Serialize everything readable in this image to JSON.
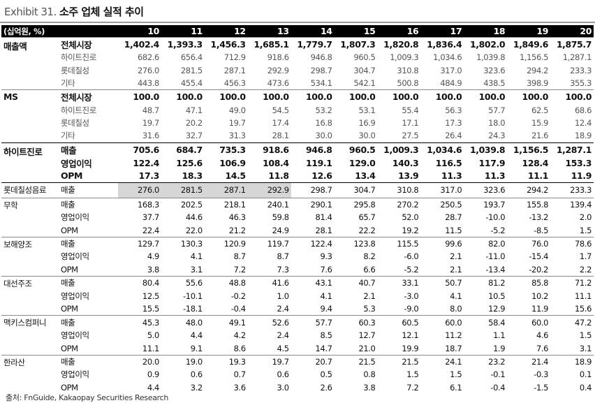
{
  "header": {
    "label": "Exhibit 31.",
    "title": "소주 업체 실적 추이"
  },
  "table": {
    "unit": "(십억원, %)",
    "columns": [
      "10",
      "11",
      "12",
      "13",
      "14",
      "15",
      "16",
      "17",
      "18",
      "19",
      "20"
    ],
    "groups": [
      {
        "label": "매출액",
        "rows": [
          {
            "label": "전체시장",
            "values": [
              "1,402.4",
              "1,393.3",
              "1,456.3",
              "1,685.1",
              "1,779.7",
              "1,807.3",
              "1,820.8",
              "1,836.4",
              "1,802.0",
              "1,849.6",
              "1,875.7"
            ]
          },
          {
            "label": "하이트진로",
            "values": [
              "682.6",
              "656.4",
              "712.9",
              "918.6",
              "946.8",
              "960.5",
              "1,009.3",
              "1,034.6",
              "1,039.8",
              "1,156.5",
              "1,287.1"
            ]
          },
          {
            "label": "롯데칠성",
            "values": [
              "276.0",
              "281.5",
              "287.1",
              "292.9",
              "298.7",
              "304.7",
              "310.8",
              "317.0",
              "323.6",
              "294.2",
              "233.3"
            ]
          },
          {
            "label": "기타",
            "values": [
              "443.8",
              "455.4",
              "456.3",
              "473.6",
              "534.1",
              "542.1",
              "500.8",
              "484.9",
              "438.5",
              "398.9",
              "355.3"
            ]
          }
        ]
      },
      {
        "label": "MS",
        "rows": [
          {
            "label": "전체시장",
            "values": [
              "100.0",
              "100.0",
              "100.0",
              "100.0",
              "100.0",
              "100.0",
              "100.0",
              "100.0",
              "100.0",
              "100.0",
              "100.0"
            ]
          },
          {
            "label": "하이트진로",
            "values": [
              "48.7",
              "47.1",
              "49.0",
              "54.5",
              "53.2",
              "53.1",
              "55.4",
              "56.3",
              "57.7",
              "62.5",
              "68.6"
            ]
          },
          {
            "label": "롯데칠성",
            "values": [
              "19.7",
              "20.2",
              "19.7",
              "17.4",
              "16.8",
              "16.9",
              "17.1",
              "17.3",
              "18.0",
              "15.9",
              "12.4"
            ]
          },
          {
            "label": "기타",
            "values": [
              "31.6",
              "32.7",
              "31.3",
              "28.1",
              "30.0",
              "30.0",
              "27.5",
              "26.4",
              "24.3",
              "21.6",
              "18.9"
            ]
          }
        ]
      },
      {
        "label": "하이트진로",
        "rows": [
          {
            "label": "매출",
            "values": [
              "705.6",
              "684.7",
              "735.3",
              "918.6",
              "946.8",
              "960.5",
              "1,009.3",
              "1,034.6",
              "1,039.8",
              "1,156.5",
              "1,287.1"
            ]
          },
          {
            "label": "영업이익",
            "values": [
              "122.4",
              "125.6",
              "106.9",
              "108.4",
              "119.1",
              "129.0",
              "140.3",
              "116.5",
              "117.9",
              "128.4",
              "153.3"
            ]
          },
          {
            "label": "OPM",
            "values": [
              "17.3",
              "18.3",
              "14.5",
              "11.8",
              "12.6",
              "13.4",
              "13.9",
              "11.3",
              "11.3",
              "11.1",
              "11.9"
            ]
          }
        ]
      },
      {
        "label": "롯데칠성음료",
        "rows": [
          {
            "label": "매출",
            "values": [
              "276.0",
              "281.5",
              "287.1",
              "292.9",
              "298.7",
              "304.7",
              "310.8",
              "317.0",
              "323.6",
              "294.2",
              "233.3"
            ]
          }
        ]
      },
      {
        "label": "무학",
        "rows": [
          {
            "label": "매출",
            "values": [
              "168.3",
              "202.5",
              "218.1",
              "240.1",
              "290.1",
              "295.8",
              "270.2",
              "250.5",
              "193.7",
              "155.8",
              "139.4"
            ]
          },
          {
            "label": "영업이익",
            "values": [
              "37.7",
              "44.6",
              "46.3",
              "59.8",
              "81.4",
              "65.7",
              "52.0",
              "28.7",
              "-10.0",
              "-13.2",
              "2.0"
            ]
          },
          {
            "label": "OPM",
            "values": [
              "22.4",
              "22.0",
              "21.2",
              "24.9",
              "28.1",
              "22.2",
              "19.2",
              "11.5",
              "-5.2",
              "-8.5",
              "1.5"
            ]
          }
        ]
      },
      {
        "label": "보해양조",
        "rows": [
          {
            "label": "매출",
            "values": [
              "129.7",
              "130.3",
              "120.9",
              "119.7",
              "122.4",
              "123.8",
              "115.5",
              "99.6",
              "82.0",
              "76.0",
              "78.6"
            ]
          },
          {
            "label": "영업이익",
            "values": [
              "4.9",
              "4.1",
              "8.7",
              "8.7",
              "9.3",
              "8.2",
              "-6.0",
              "2.1",
              "-11.0",
              "-15.4",
              "1.7"
            ]
          },
          {
            "label": "OPM",
            "values": [
              "3.8",
              "3.1",
              "7.2",
              "7.3",
              "7.6",
              "6.6",
              "-5.2",
              "2.1",
              "-13.4",
              "-20.2",
              "2.2"
            ]
          }
        ]
      },
      {
        "label": "대선주조",
        "rows": [
          {
            "label": "매출",
            "values": [
              "80.4",
              "55.6",
              "48.8",
              "41.6",
              "43.1",
              "40.7",
              "33.1",
              "50.7",
              "81.2",
              "85.8",
              "71.2"
            ]
          },
          {
            "label": "영업이익",
            "values": [
              "12.5",
              "-10.1",
              "-0.2",
              "1.0",
              "4.1",
              "2.1",
              "-3.0",
              "4.1",
              "10.5",
              "10.2",
              "11.1"
            ]
          },
          {
            "label": "OPM",
            "values": [
              "15.5",
              "-18.1",
              "-0.4",
              "2.4",
              "9.4",
              "5.3",
              "-9.0",
              "8.0",
              "12.9",
              "11.9",
              "15.6"
            ]
          }
        ]
      },
      {
        "label": "맥키스컴퍼니",
        "rows": [
          {
            "label": "매출",
            "values": [
              "45.3",
              "48.0",
              "49.1",
              "52.6",
              "57.7",
              "60.3",
              "60.5",
              "60.0",
              "58.4",
              "60.0",
              "47.2"
            ]
          },
          {
            "label": "영업이익",
            "values": [
              "5.0",
              "4.4",
              "4.2",
              "2.4",
              "8.5",
              "12.7",
              "12.1",
              "11.2",
              "1.1",
              "4.6",
              "1.5"
            ]
          },
          {
            "label": "OPM",
            "values": [
              "11.1",
              "9.1",
              "8.6",
              "4.5",
              "14.7",
              "21.0",
              "19.9",
              "18.7",
              "1.9",
              "7.6",
              "3.1"
            ]
          }
        ]
      },
      {
        "label": "한라산",
        "rows": [
          {
            "label": "매출",
            "values": [
              "20.0",
              "19.0",
              "19.3",
              "19.7",
              "20.7",
              "21.5",
              "21.5",
              "24.1",
              "23.2",
              "21.4",
              "18.9"
            ]
          },
          {
            "label": "영업이익",
            "values": [
              "0.9",
              "0.6",
              "0.7",
              "0.6",
              "0.5",
              "0.8",
              "1.5",
              "1.5",
              "-0.1",
              "-0.3",
              "0.1"
            ]
          },
          {
            "label": "OPM",
            "values": [
              "4.4",
              "3.2",
              "3.6",
              "3.0",
              "2.6",
              "3.8",
              "7.2",
              "6.1",
              "-0.4",
              "-1.5",
              "0.4"
            ]
          }
        ]
      }
    ]
  },
  "footer": {
    "source": "출처: FnGuide, Kakaopay Securities Research"
  }
}
